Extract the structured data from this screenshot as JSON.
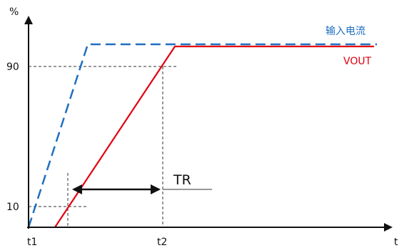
{
  "axes": {
    "y_label": "%",
    "x_label": "t"
  },
  "levels": {
    "high": "90",
    "low": "10"
  },
  "time_marks": {
    "t1": "t1",
    "t2": "t2"
  },
  "interval_label": "TR",
  "legend": {
    "input": "输入电流",
    "output": "VOUT"
  },
  "colors": {
    "input": "#1f6fc0",
    "output": "#e3000f",
    "axis": "#111111",
    "guide": "#333333"
  }
}
